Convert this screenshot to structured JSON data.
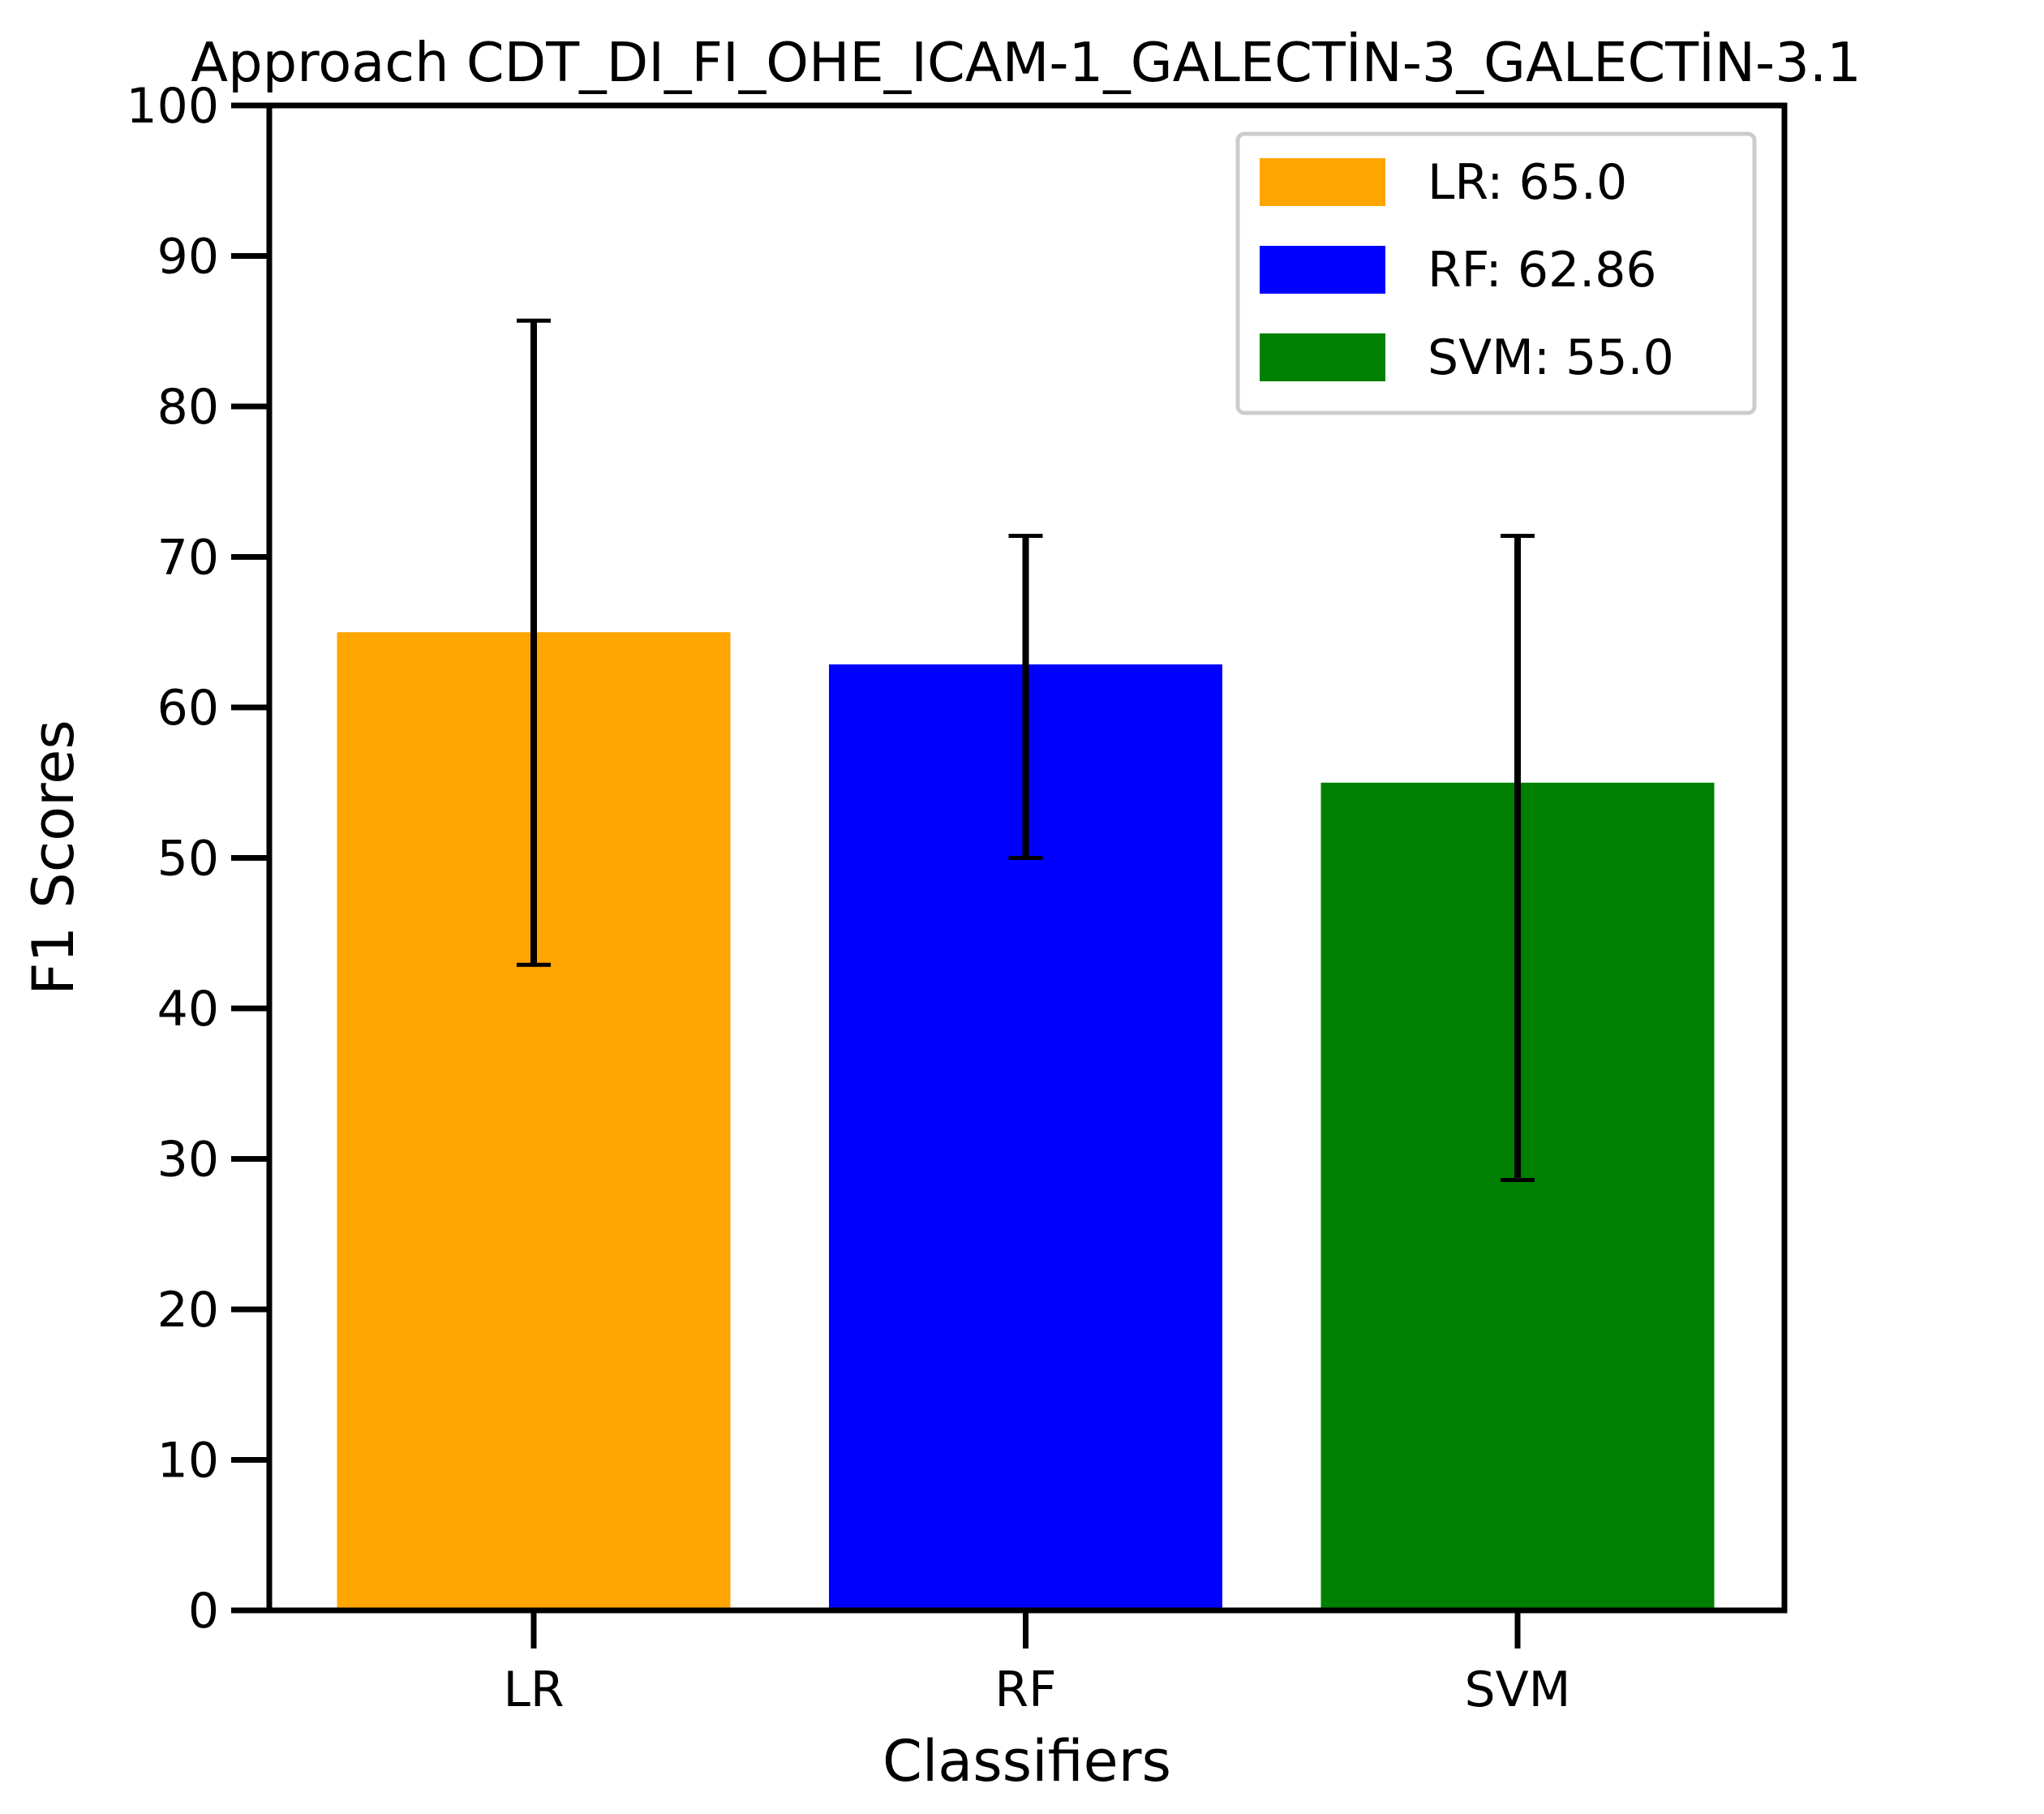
{
  "chart_data": {
    "type": "bar",
    "title": "Approach CDT_DI_FI_OHE_ICAM-1_GALECTİN-3_GALECTİN-3.1",
    "xlabel": "Classifiers",
    "ylabel": "F1 Scores",
    "ylim": [
      0,
      100
    ],
    "yticks": [
      "0",
      "10",
      "20",
      "30",
      "40",
      "50",
      "60",
      "70",
      "80",
      "90",
      "100"
    ],
    "categories": [
      "LR",
      "RF",
      "SVM"
    ],
    "values": [
      65.0,
      62.86,
      55.0
    ],
    "error_low": [
      42.9,
      50.0,
      28.6
    ],
    "error_high": [
      85.7,
      71.4,
      71.4
    ],
    "colors": [
      "#ffa500",
      "#0000ff",
      "#008000"
    ],
    "grid": false,
    "legend": {
      "position": "top-right",
      "entries": [
        "LR: 65.0",
        "RF: 62.86",
        "SVM: 55.0"
      ]
    }
  }
}
